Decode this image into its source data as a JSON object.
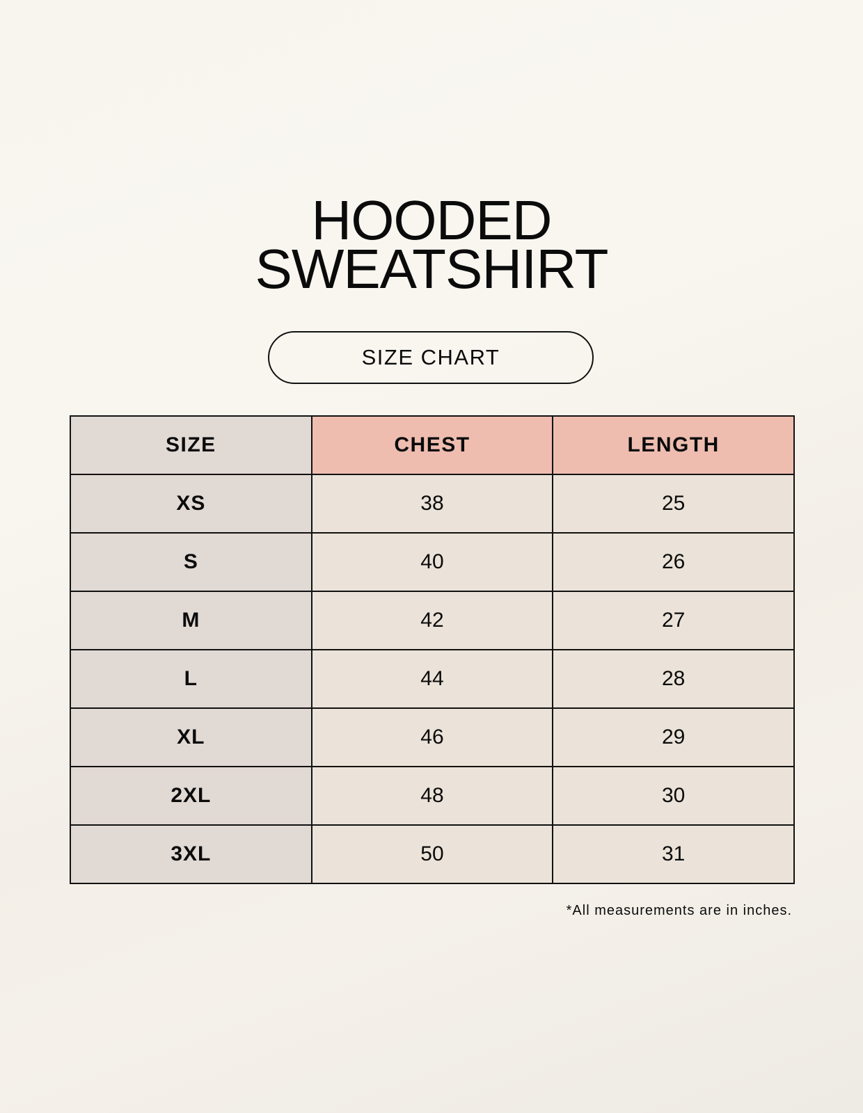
{
  "title": {
    "line1": "HOODED",
    "line2": "SWEATSHIRT"
  },
  "subtitle": "SIZE CHART",
  "table": {
    "headers": [
      "SIZE",
      "CHEST",
      "LENGTH"
    ],
    "rows": [
      [
        "XS",
        "38",
        "25"
      ],
      [
        "S",
        "40",
        "26"
      ],
      [
        "M",
        "42",
        "27"
      ],
      [
        "L",
        "44",
        "28"
      ],
      [
        "XL",
        "46",
        "29"
      ],
      [
        "2XL",
        "48",
        "30"
      ],
      [
        "3XL",
        "50",
        "31"
      ]
    ]
  },
  "footnote": "*All measurements are in inches.",
  "colors": {
    "size_column": "#e1d9d4",
    "header_accent": "#eebdb0",
    "cell": "#ebe3d9"
  }
}
